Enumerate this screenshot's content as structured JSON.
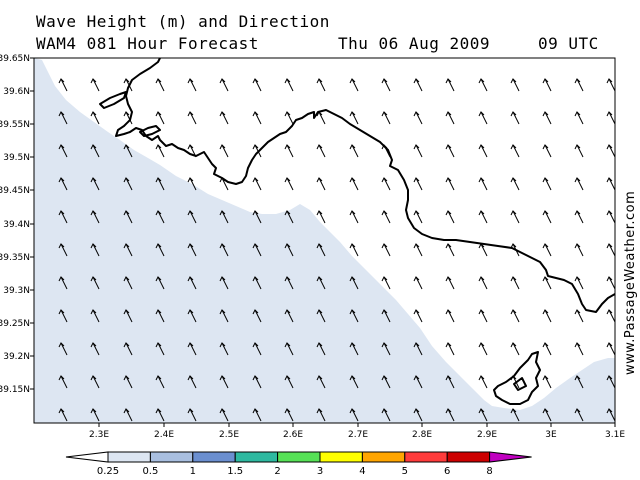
{
  "header": {
    "title_line1": "Wave Height (m) and Direction",
    "title_line2": "WAM4 081 Hour Forecast",
    "date": "Thu 06 Aug 2009",
    "time": "09 UTC"
  },
  "watermark": "www.PassageWeather.com",
  "map": {
    "lat_labels": [
      "39.65N",
      "39.6N",
      "39.55N",
      "39.5N",
      "39.45N",
      "39.4N",
      "39.35N",
      "39.3N",
      "39.25N",
      "39.2N",
      "39.15N"
    ],
    "lon_labels": [
      "2.3E",
      "2.4E",
      "2.5E",
      "2.6E",
      "2.7E",
      "2.8E",
      "2.9E",
      "3E",
      "3.1E"
    ],
    "lat_range": [
      39.1,
      39.65
    ],
    "lon_range": [
      2.2,
      3.1
    ],
    "sea_color": "#dde6f2",
    "land_color": "#ffffff",
    "coast_color": "#000000",
    "arrow_direction": "NNW",
    "arrow_rows": [
      [
        "2.24E",
        "2.34E"
      ],
      [
        "2.24E",
        "2.34E",
        "2.44E",
        "2.54E",
        "2.64E",
        "2.74E",
        "2.84E",
        "2.94E",
        "3.04E"
      ]
    ]
  },
  "legend": {
    "labels": [
      "0.25",
      "0.5",
      "1",
      "1.5",
      "2",
      "3",
      "4",
      "5",
      "6",
      "8"
    ],
    "colors": [
      "#dde6f2",
      "#a9bfe0",
      "#6b8fd0",
      "#2eb9a0",
      "#56e156",
      "#ffff00",
      "#ffa500",
      "#ff3b3b",
      "#cc0000",
      "#c000c0"
    ],
    "start_color": "#ffffff"
  }
}
